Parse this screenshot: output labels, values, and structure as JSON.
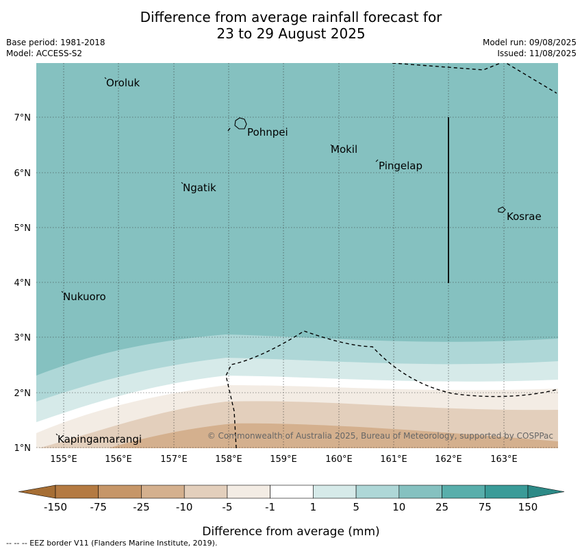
{
  "title_line1": "Difference from average rainfall forecast for",
  "title_line2": "23 to 29 August 2025",
  "base_period": "Base period: 1981-2018",
  "model": "Model: ACCESS-S2",
  "model_run": "Model run: 09/08/2025",
  "issued": "Issued: 11/08/2025",
  "copyright": "© Commonwealth of Australia 2025, Bureau of Meteorology, supported by COSPPac",
  "lon_ticks": [
    "155°E",
    "156°E",
    "157°E",
    "158°E",
    "159°E",
    "160°E",
    "161°E",
    "162°E",
    "163°E"
  ],
  "lat_ticks": [
    "1°N",
    "2°N",
    "3°N",
    "4°N",
    "5°N",
    "6°N",
    "7°N"
  ],
  "places": [
    {
      "name": "Oroluk"
    },
    {
      "name": "Pohnpei"
    },
    {
      "name": "Mokil"
    },
    {
      "name": "Pingelap"
    },
    {
      "name": "Ngatik"
    },
    {
      "name": "Kosrae"
    },
    {
      "name": "Nukuoro"
    },
    {
      "name": "Kapingamarangi"
    }
  ],
  "colorbar": {
    "label": "Difference from average (mm)",
    "ticks": [
      "-150",
      "-75",
      "-25",
      "-10",
      "-5",
      "-1",
      "1",
      "5",
      "10",
      "25",
      "75",
      "150"
    ],
    "colors": {
      "under": "#a66e34",
      "bins": [
        "#b47a42",
        "#c69668",
        "#d4b08e",
        "#e3cfbc",
        "#f3ece4",
        "#ffffff",
        "#d6eae9",
        "#aed7d7",
        "#85c1c0",
        "#58aeab",
        "#3a9b98"
      ],
      "over": "#2d8a87"
    }
  },
  "footer": "--  --  -- EEZ border V11 (Flanders Marine Institute, 2019)."
}
